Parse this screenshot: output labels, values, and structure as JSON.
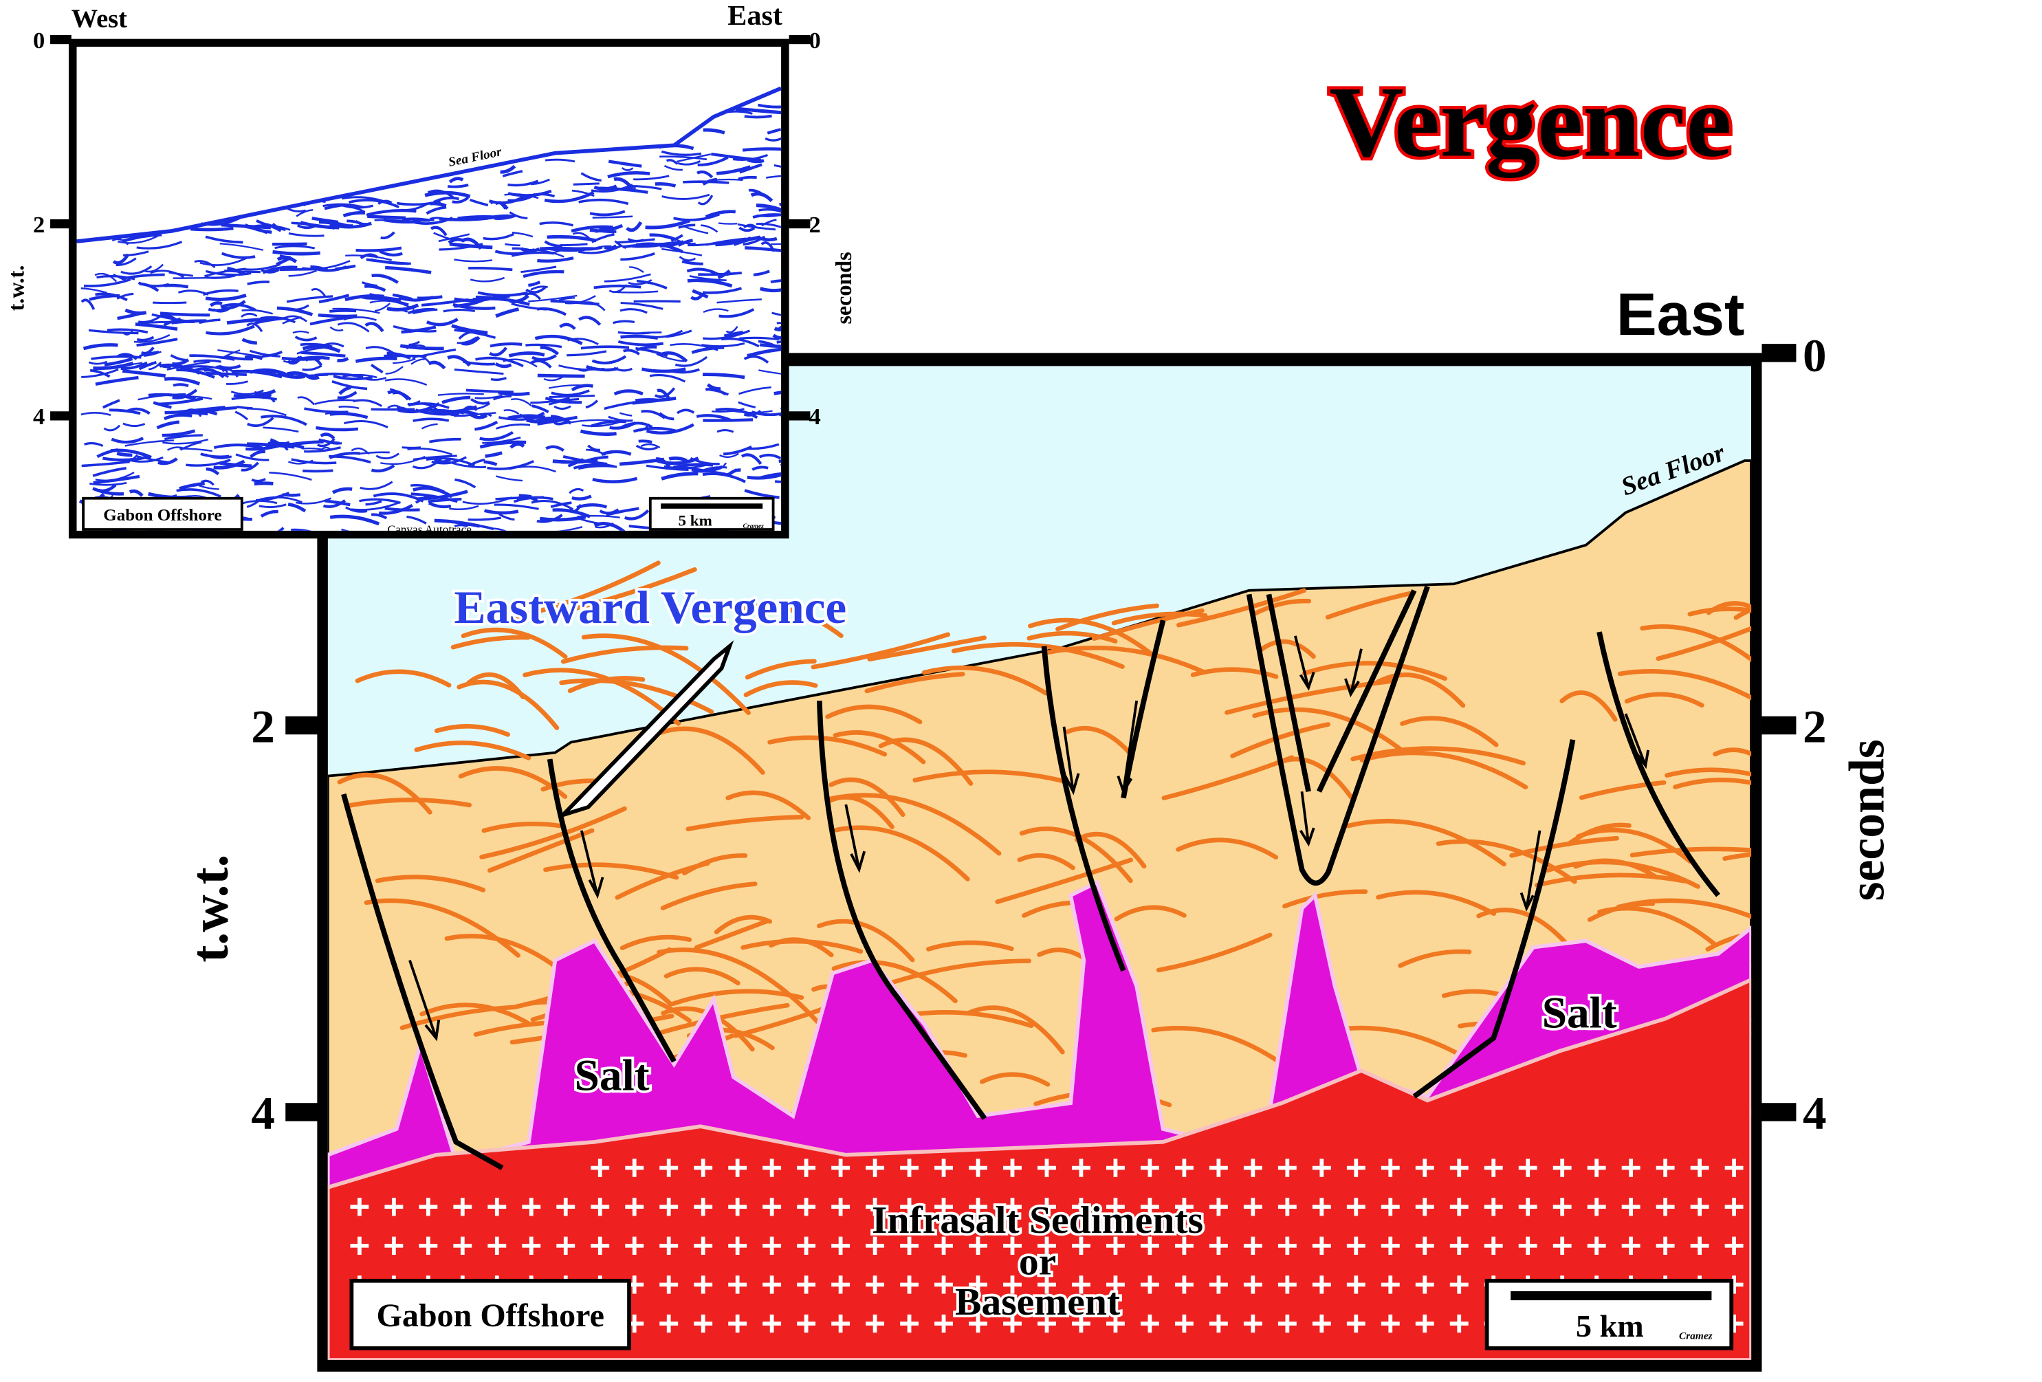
{
  "title": "Vergence",
  "inset": {
    "west": "West",
    "east": "East",
    "left_ticks": [
      "0",
      "2",
      "4"
    ],
    "right_ticks": [
      "0",
      "2",
      "4"
    ],
    "left_axis": "t.w.t.",
    "right_axis": "seconds",
    "sea_floor": "Sea Floor",
    "location": "Gabon Offshore",
    "scale": "5 km",
    "author": "Cramez",
    "credit": "Canvas Autotrace"
  },
  "section": {
    "east": "East",
    "left_ticks": [
      "2",
      "4"
    ],
    "right_ticks": [
      "0",
      "2",
      "4"
    ],
    "left_axis": "t.w.t.",
    "right_axis": "seconds",
    "sea_floor": "Sea Floor",
    "annotation": "Eastward Vergence",
    "salt_left": "Salt",
    "salt_right": "Salt",
    "basement": [
      "Infrasalt Sediments",
      "or",
      "Basement"
    ],
    "location": "Gabon Offshore",
    "scale": "5 km",
    "author": "Cramez"
  }
}
